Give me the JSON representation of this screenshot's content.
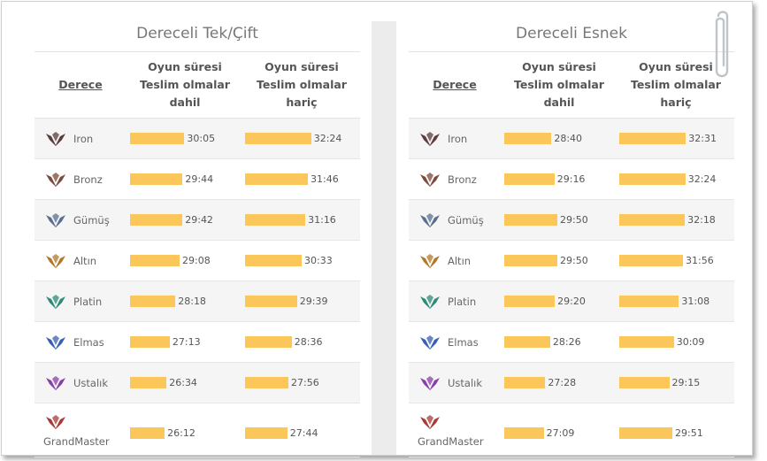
{
  "colors": {
    "bar": "#fbc75a",
    "row_alt": "#f5f5f5"
  },
  "headers": {
    "rank": "Derece",
    "col1": [
      "Oyun süresi",
      "Teslim olmalar",
      "dahil"
    ],
    "col2": [
      "Oyun süresi",
      "Teslim olmalar",
      "hariç"
    ]
  },
  "chart_data": [
    {
      "type": "bar",
      "title": "Dereceli Tek/Çift",
      "categories": [
        "Iron",
        "Bronz",
        "Gümüş",
        "Altın",
        "Platin",
        "Elmas",
        "Ustalık",
        "GrandMaster"
      ],
      "series": [
        {
          "values": [
            "30:05",
            "29:44",
            "29:42",
            "29:08",
            "28:18",
            "27:13",
            "26:34",
            "26:12"
          ]
        },
        {
          "values": [
            "32:24",
            "31:46",
            "31:16",
            "30:33",
            "29:39",
            "28:36",
            "27:56",
            "27:44"
          ]
        }
      ]
    },
    {
      "type": "bar",
      "title": "Dereceli Esnek",
      "categories": [
        "Iron",
        "Bronz",
        "Gümüş",
        "Altın",
        "Platin",
        "Elmas",
        "Ustalık",
        "GrandMaster"
      ],
      "series": [
        {
          "values": [
            "28:40",
            "29:16",
            "29:50",
            "29:50",
            "29:20",
            "28:26",
            "27:28",
            "27:09"
          ]
        },
        {
          "values": [
            "32:31",
            "32:24",
            "32:18",
            "31:56",
            "31:08",
            "30:09",
            "29:15",
            "29:51"
          ]
        }
      ]
    }
  ],
  "emblems": [
    {
      "icon": "iron-emblem-icon",
      "color": "#5b3b3b"
    },
    {
      "icon": "bronze-emblem-icon",
      "color": "#7a4a3a"
    },
    {
      "icon": "silver-emblem-icon",
      "color": "#5a6f8f"
    },
    {
      "icon": "gold-emblem-icon",
      "color": "#b07a2a"
    },
    {
      "icon": "platinum-emblem-icon",
      "color": "#2f8a7a"
    },
    {
      "icon": "diamond-emblem-icon",
      "color": "#3a5fb0"
    },
    {
      "icon": "master-emblem-icon",
      "color": "#8a3fa8"
    },
    {
      "icon": "grandmaster-emblem-icon",
      "color": "#a83a3a"
    }
  ]
}
